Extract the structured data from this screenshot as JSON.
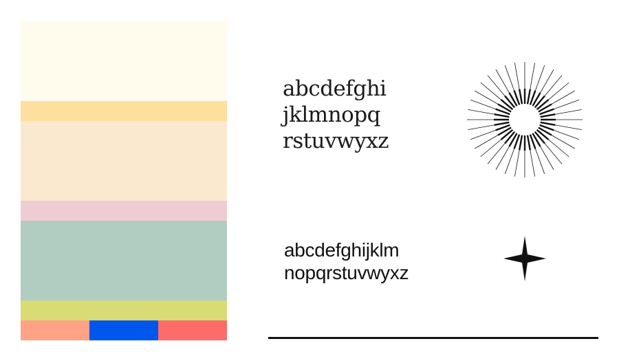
{
  "palette": {
    "bands": [
      "#fffcee",
      "#ffdf9e",
      "#fae9ce",
      "#edcdd3",
      "#b1cdc1",
      "#d9db75"
    ],
    "bottom_swatches": [
      "#ffa286",
      "#0056ed",
      "#fe6c69"
    ]
  },
  "specimens": {
    "serif_lines": [
      "abcdefghi",
      "jklmnopq",
      "rstuvwyxz"
    ],
    "sans_lines": [
      "abcdefghijklm",
      "nopqrstuvwyxz"
    ]
  },
  "ornaments": {
    "starburst": "starburst-icon",
    "star": "four-point-star-icon"
  },
  "colors": {
    "ink": "#111111"
  }
}
